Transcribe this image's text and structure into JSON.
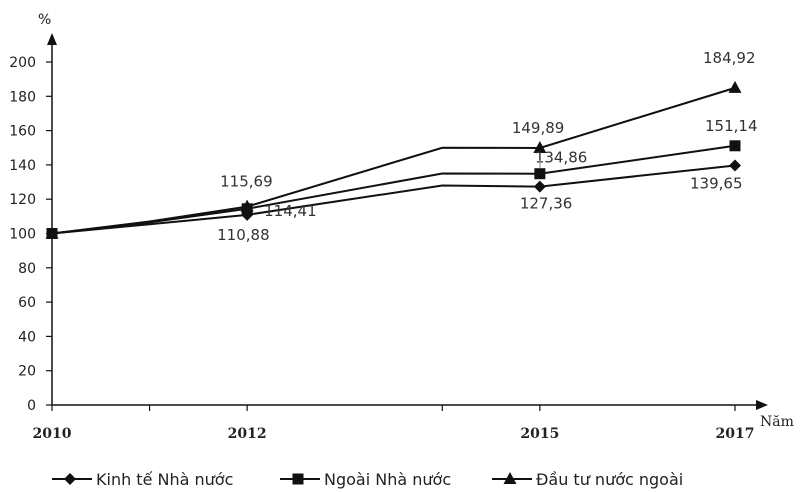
{
  "chart_data": {
    "type": "line",
    "ylabel": "%",
    "xlabel": "Năm",
    "ylim": [
      0,
      200
    ],
    "yticks": [
      "0",
      "20",
      "40",
      "60",
      "80",
      "100",
      "120",
      "140",
      "160",
      "180",
      "200"
    ],
    "x": [
      2010,
      2011,
      2012,
      2014,
      2015,
      2017
    ],
    "xtick_labels": [
      "2010",
      "2012",
      "2015",
      "2017"
    ],
    "grid": false,
    "legend_position": "bottom",
    "series": [
      {
        "name": "Kinh tế Nhà nước",
        "marker": "diamond",
        "values": [
          100,
          105.4,
          110.88,
          128.0,
          127.36,
          139.65
        ],
        "labels": [
          "",
          "",
          "110,88",
          "",
          "127,36",
          "139,65"
        ]
      },
      {
        "name": "Ngoài Nhà nước",
        "marker": "square",
        "values": [
          100,
          106.5,
          114.41,
          135.0,
          134.86,
          151.14
        ],
        "labels": [
          "",
          "",
          "114,41",
          "",
          "134,86",
          "151,14"
        ]
      },
      {
        "name": "Đầu tư nước ngoài",
        "marker": "triangle",
        "values": [
          100,
          107.0,
          115.69,
          150.0,
          149.89,
          184.92
        ],
        "labels": [
          "",
          "",
          "115,69",
          "",
          "149,89",
          "184,92"
        ]
      }
    ]
  }
}
